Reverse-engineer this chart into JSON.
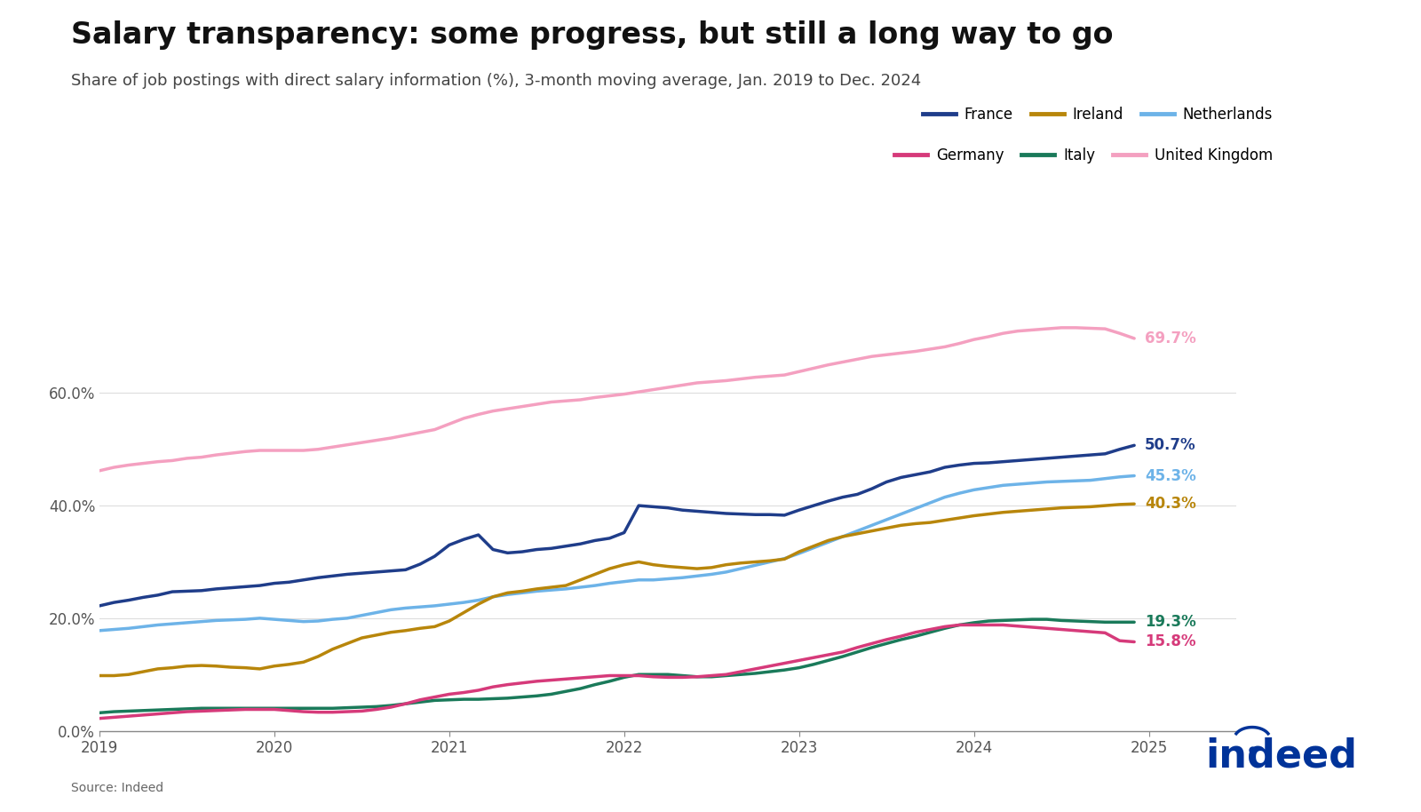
{
  "title": "Salary transparency: some progress, but still a long way to go",
  "subtitle": "Share of job postings with direct salary information (%), 3-month moving average, Jan. 2019 to Dec. 2024",
  "source": "Source: Indeed",
  "background_color": "#ffffff",
  "title_fontsize": 24,
  "subtitle_fontsize": 13,
  "colors": {
    "France": "#1f3d8a",
    "Ireland": "#b8860b",
    "Netherlands": "#6db3e8",
    "Germany": "#d63a7a",
    "Italy": "#1a7a5a",
    "United Kingdom": "#f4a0c0"
  },
  "end_labels": {
    "France": "50.7%",
    "Ireland": "40.3%",
    "Netherlands": "45.3%",
    "Germany": "15.8%",
    "Italy": "19.3%",
    "United Kingdom": "69.7%"
  },
  "series": {
    "France": [
      0.222,
      0.228,
      0.232,
      0.237,
      0.241,
      0.247,
      0.248,
      0.249,
      0.252,
      0.254,
      0.256,
      0.258,
      0.262,
      0.264,
      0.268,
      0.272,
      0.275,
      0.278,
      0.28,
      0.282,
      0.284,
      0.286,
      0.296,
      0.31,
      0.33,
      0.34,
      0.348,
      0.322,
      0.316,
      0.318,
      0.322,
      0.324,
      0.328,
      0.332,
      0.338,
      0.342,
      0.352,
      0.4,
      0.398,
      0.396,
      0.392,
      0.39,
      0.388,
      0.386,
      0.385,
      0.384,
      0.384,
      0.383,
      0.392,
      0.4,
      0.408,
      0.415,
      0.42,
      0.43,
      0.442,
      0.45,
      0.455,
      0.46,
      0.468,
      0.472,
      0.475,
      0.476,
      0.478,
      0.48,
      0.482,
      0.484,
      0.486,
      0.488,
      0.49,
      0.492,
      0.5,
      0.507
    ],
    "Ireland": [
      0.098,
      0.098,
      0.1,
      0.105,
      0.11,
      0.112,
      0.115,
      0.116,
      0.115,
      0.113,
      0.112,
      0.11,
      0.115,
      0.118,
      0.122,
      0.132,
      0.145,
      0.155,
      0.165,
      0.17,
      0.175,
      0.178,
      0.182,
      0.185,
      0.195,
      0.21,
      0.225,
      0.238,
      0.245,
      0.248,
      0.252,
      0.255,
      0.258,
      0.268,
      0.278,
      0.288,
      0.295,
      0.3,
      0.295,
      0.292,
      0.29,
      0.288,
      0.29,
      0.295,
      0.298,
      0.3,
      0.302,
      0.305,
      0.318,
      0.328,
      0.338,
      0.345,
      0.35,
      0.355,
      0.36,
      0.365,
      0.368,
      0.37,
      0.374,
      0.378,
      0.382,
      0.385,
      0.388,
      0.39,
      0.392,
      0.394,
      0.396,
      0.397,
      0.398,
      0.4,
      0.402,
      0.403
    ],
    "Netherlands": [
      0.178,
      0.18,
      0.182,
      0.185,
      0.188,
      0.19,
      0.192,
      0.194,
      0.196,
      0.197,
      0.198,
      0.2,
      0.198,
      0.196,
      0.194,
      0.195,
      0.198,
      0.2,
      0.205,
      0.21,
      0.215,
      0.218,
      0.22,
      0.222,
      0.225,
      0.228,
      0.232,
      0.238,
      0.242,
      0.245,
      0.248,
      0.25,
      0.252,
      0.255,
      0.258,
      0.262,
      0.265,
      0.268,
      0.268,
      0.27,
      0.272,
      0.275,
      0.278,
      0.282,
      0.288,
      0.294,
      0.3,
      0.306,
      0.315,
      0.325,
      0.335,
      0.345,
      0.355,
      0.365,
      0.375,
      0.385,
      0.395,
      0.405,
      0.415,
      0.422,
      0.428,
      0.432,
      0.436,
      0.438,
      0.44,
      0.442,
      0.443,
      0.444,
      0.445,
      0.448,
      0.451,
      0.453
    ],
    "Germany": [
      0.022,
      0.024,
      0.026,
      0.028,
      0.03,
      0.032,
      0.034,
      0.035,
      0.036,
      0.037,
      0.038,
      0.038,
      0.038,
      0.036,
      0.034,
      0.033,
      0.033,
      0.034,
      0.035,
      0.038,
      0.042,
      0.048,
      0.055,
      0.06,
      0.065,
      0.068,
      0.072,
      0.078,
      0.082,
      0.085,
      0.088,
      0.09,
      0.092,
      0.094,
      0.096,
      0.098,
      0.098,
      0.098,
      0.096,
      0.095,
      0.095,
      0.096,
      0.098,
      0.1,
      0.105,
      0.11,
      0.115,
      0.12,
      0.125,
      0.13,
      0.135,
      0.14,
      0.148,
      0.155,
      0.162,
      0.168,
      0.175,
      0.18,
      0.185,
      0.188,
      0.188,
      0.188,
      0.188,
      0.186,
      0.184,
      0.182,
      0.18,
      0.178,
      0.176,
      0.174,
      0.16,
      0.158
    ],
    "Italy": [
      0.032,
      0.034,
      0.035,
      0.036,
      0.037,
      0.038,
      0.039,
      0.04,
      0.04,
      0.04,
      0.04,
      0.04,
      0.04,
      0.04,
      0.04,
      0.04,
      0.04,
      0.041,
      0.042,
      0.043,
      0.045,
      0.048,
      0.051,
      0.054,
      0.055,
      0.056,
      0.056,
      0.057,
      0.058,
      0.06,
      0.062,
      0.065,
      0.07,
      0.075,
      0.082,
      0.088,
      0.095,
      0.1,
      0.1,
      0.1,
      0.098,
      0.096,
      0.096,
      0.098,
      0.1,
      0.102,
      0.105,
      0.108,
      0.112,
      0.118,
      0.125,
      0.132,
      0.14,
      0.148,
      0.155,
      0.162,
      0.168,
      0.175,
      0.182,
      0.188,
      0.192,
      0.195,
      0.196,
      0.197,
      0.198,
      0.198,
      0.196,
      0.195,
      0.194,
      0.193,
      0.193,
      0.193
    ],
    "United Kingdom": [
      0.462,
      0.468,
      0.472,
      0.475,
      0.478,
      0.48,
      0.484,
      0.486,
      0.49,
      0.493,
      0.496,
      0.498,
      0.498,
      0.498,
      0.498,
      0.5,
      0.504,
      0.508,
      0.512,
      0.516,
      0.52,
      0.525,
      0.53,
      0.535,
      0.545,
      0.555,
      0.562,
      0.568,
      0.572,
      0.576,
      0.58,
      0.584,
      0.586,
      0.588,
      0.592,
      0.595,
      0.598,
      0.602,
      0.606,
      0.61,
      0.614,
      0.618,
      0.62,
      0.622,
      0.625,
      0.628,
      0.63,
      0.632,
      0.638,
      0.644,
      0.65,
      0.655,
      0.66,
      0.665,
      0.668,
      0.671,
      0.674,
      0.678,
      0.682,
      0.688,
      0.695,
      0.7,
      0.706,
      0.71,
      0.712,
      0.714,
      0.716,
      0.716,
      0.715,
      0.714,
      0.706,
      0.697
    ]
  },
  "ylim": [
    0.0,
    0.75
  ],
  "yticks": [
    0.0,
    0.2,
    0.4,
    0.6
  ],
  "ytick_labels": [
    "0.0%",
    "20.0%",
    "40.0%",
    "60.0%"
  ],
  "xtick_years": [
    2019,
    2020,
    2021,
    2022,
    2023,
    2024,
    2025
  ],
  "line_width": 2.5
}
